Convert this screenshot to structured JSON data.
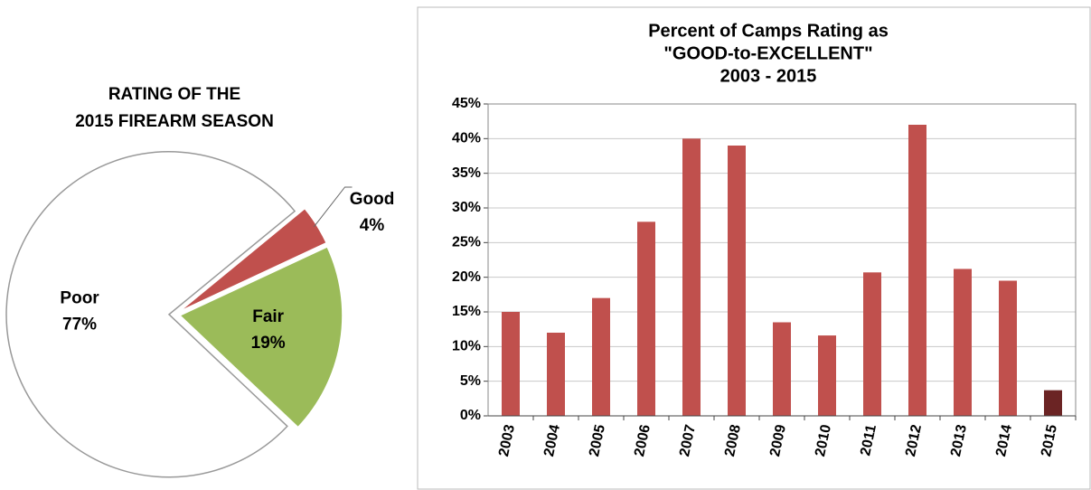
{
  "chart_data": [
    {
      "type": "pie",
      "title": [
        "RATING OF THE",
        "2015 FIREARM SEASON"
      ],
      "categories": [
        "Good",
        "Fair",
        "Poor"
      ],
      "values": [
        4,
        19,
        77
      ],
      "value_labels": [
        "4%",
        "19%",
        "77%"
      ],
      "colors": [
        "#c0504d",
        "#9bbb59",
        "#ffffff"
      ]
    },
    {
      "type": "bar",
      "title": [
        "Percent of Camps Rating as",
        "\"GOOD-to-EXCELLENT\"",
        "2003 - 2015"
      ],
      "categories": [
        "2003",
        "2004",
        "2005",
        "2006",
        "2007",
        "2008",
        "2009",
        "2010",
        "2011",
        "2012",
        "2013",
        "2014",
        "2015"
      ],
      "values": [
        15,
        12,
        17,
        28,
        40,
        39,
        13.5,
        11.6,
        20.7,
        42,
        21.2,
        19.5,
        3.7
      ],
      "colors": [
        "#c0504d",
        "#c0504d",
        "#c0504d",
        "#c0504d",
        "#c0504d",
        "#c0504d",
        "#c0504d",
        "#c0504d",
        "#c0504d",
        "#c0504d",
        "#c0504d",
        "#c0504d",
        "#6b2424"
      ],
      "ylim": [
        0,
        45
      ],
      "yticks": [
        {
          "value": 0,
          "label": "0%"
        },
        {
          "value": 5,
          "label": "5%"
        },
        {
          "value": 10,
          "label": "10%"
        },
        {
          "value": 15,
          "label": "15%"
        },
        {
          "value": 20,
          "label": "20%"
        },
        {
          "value": 25,
          "label": "25%"
        },
        {
          "value": 30,
          "label": "30%"
        },
        {
          "value": 35,
          "label": "35%"
        },
        {
          "value": 40,
          "label": "40%"
        },
        {
          "value": 45,
          "label": "45%"
        }
      ],
      "grid": true
    }
  ]
}
